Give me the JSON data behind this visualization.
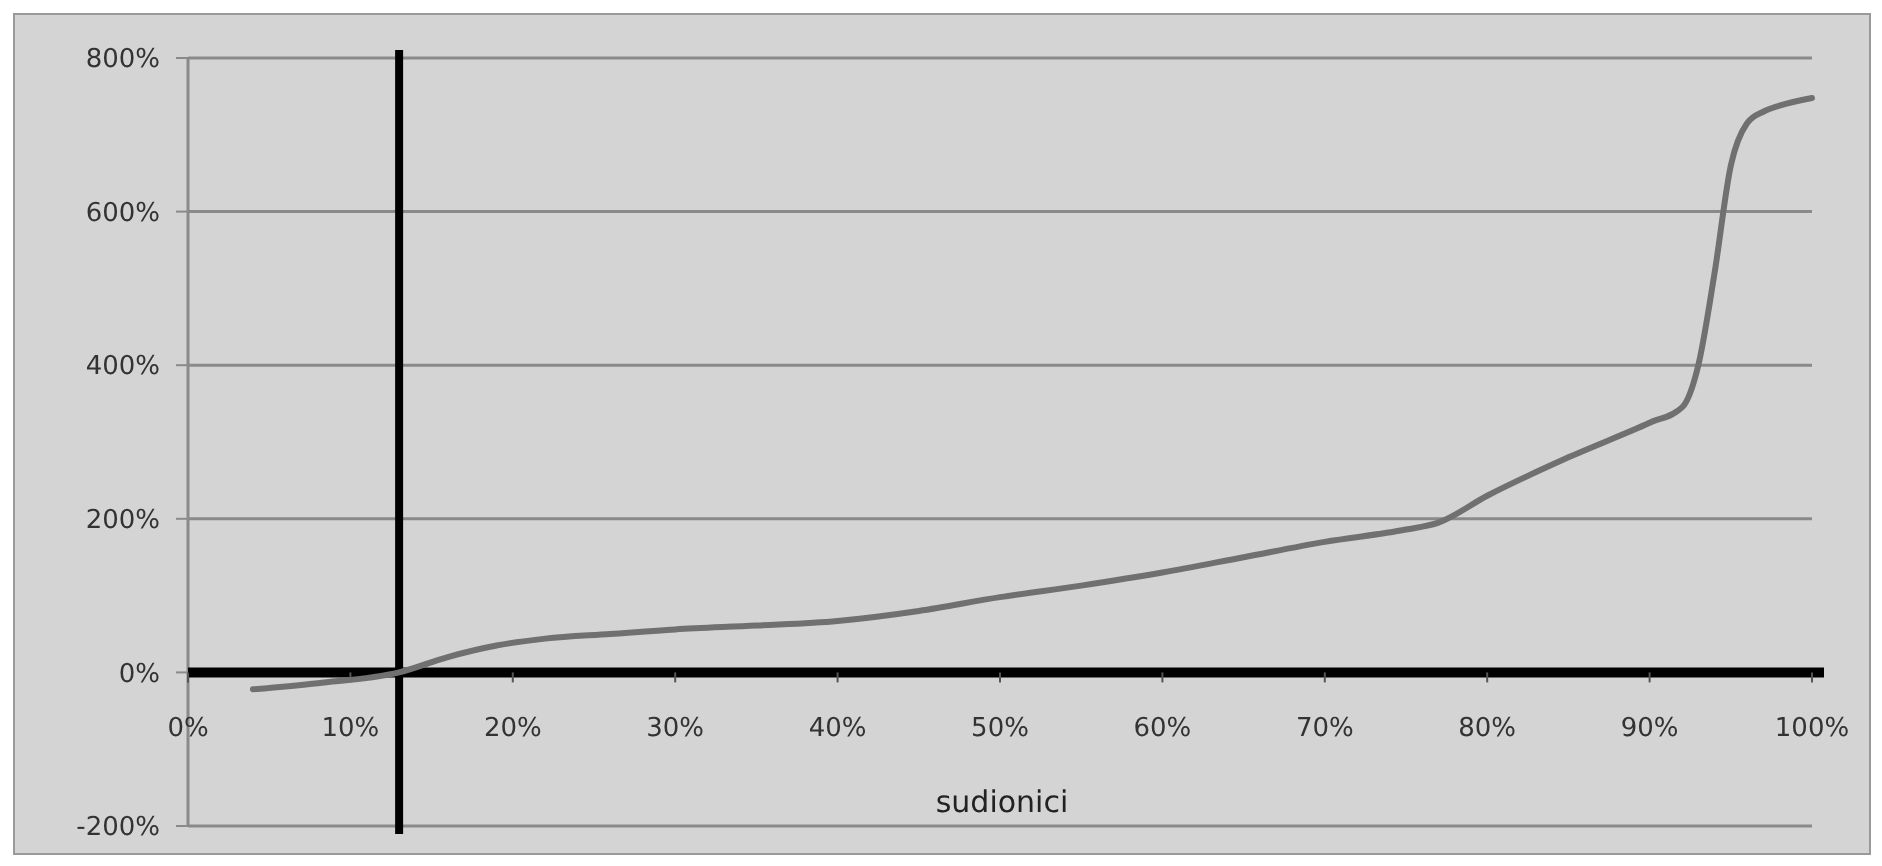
{
  "chart_data": {
    "type": "line",
    "xlabel": "sudionici",
    "x": [
      4,
      8,
      13,
      16,
      19,
      22,
      26,
      30,
      35,
      40,
      45,
      50,
      55,
      60,
      65,
      70,
      75,
      77,
      80,
      85,
      90,
      92,
      93,
      94,
      95,
      96,
      97,
      98,
      100
    ],
    "series": [
      {
        "color": "#707070",
        "values": [
          -22,
          -14,
          0,
          20,
          35,
          44,
          50,
          56,
          61,
          67,
          80,
          98,
          113,
          130,
          150,
          170,
          186,
          195,
          230,
          280,
          325,
          345,
          400,
          520,
          660,
          715,
          730,
          738,
          748
        ]
      }
    ],
    "xlim": [
      0,
      100
    ],
    "ylim": [
      -200,
      800
    ],
    "xticks": [
      {
        "value": 0,
        "label": "0%"
      },
      {
        "value": 10,
        "label": "10%"
      },
      {
        "value": 20,
        "label": "20%"
      },
      {
        "value": 30,
        "label": "30%"
      },
      {
        "value": 40,
        "label": "40%"
      },
      {
        "value": 50,
        "label": "50%"
      },
      {
        "value": 60,
        "label": "60%"
      },
      {
        "value": 70,
        "label": "70%"
      },
      {
        "value": 80,
        "label": "80%"
      },
      {
        "value": 90,
        "label": "90%"
      },
      {
        "value": 100,
        "label": "100%"
      }
    ],
    "yticks": [
      {
        "value": -200,
        "label": "-200%"
      },
      {
        "value": 0,
        "label": "0%"
      },
      {
        "value": 200,
        "label": "200%"
      },
      {
        "value": 400,
        "label": "400%"
      },
      {
        "value": 600,
        "label": "600%"
      },
      {
        "value": 800,
        "label": "800%"
      }
    ],
    "ref_lines": [
      {
        "axis": "x",
        "value": 13,
        "color": "#000000"
      }
    ],
    "grid": "y",
    "marker": "none",
    "line_style": "solid"
  }
}
